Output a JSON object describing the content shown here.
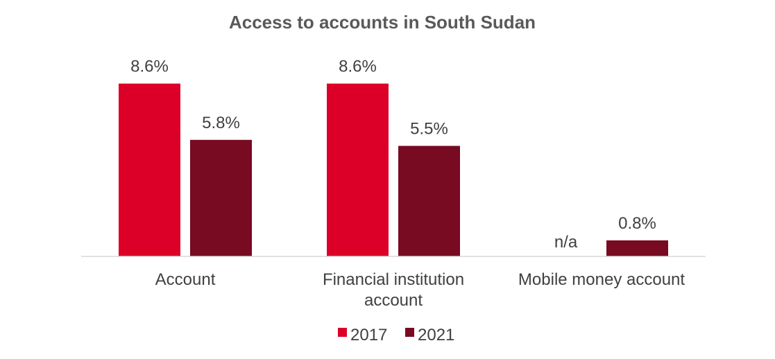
{
  "chart_data": {
    "type": "bar",
    "title": "Access to accounts in South Sudan",
    "categories": [
      "Account",
      "Financial institution account",
      "Mobile money account"
    ],
    "category_lines": [
      [
        "Account"
      ],
      [
        "Financial institution",
        "account"
      ],
      [
        "Mobile money account"
      ]
    ],
    "series": [
      {
        "name": "2017",
        "color": "#dc0028",
        "values": [
          8.6,
          8.6,
          null
        ],
        "labels": [
          "8.6%",
          "8.6%",
          "n/a"
        ]
      },
      {
        "name": "2021",
        "color": "#780a22",
        "values": [
          5.8,
          5.5,
          0.8
        ],
        "labels": [
          "5.8%",
          "5.5%",
          "0.8%"
        ]
      }
    ],
    "ylim": [
      0,
      9.5
    ],
    "grid": false,
    "legend_position": "bottom"
  }
}
